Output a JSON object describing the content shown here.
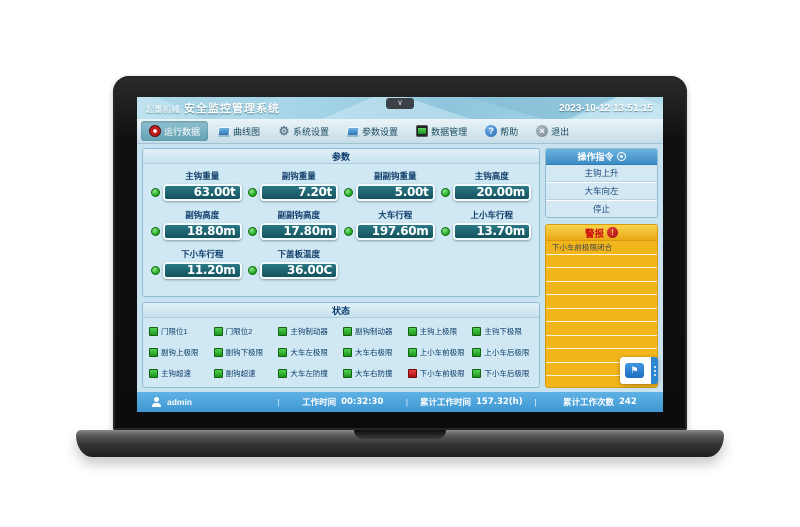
{
  "window": {
    "title_prefix": "起重机械",
    "title": "安全监控管理系统",
    "datetime": "2023-10-12 13:51:15",
    "collapse_glyph": "∨"
  },
  "menu": {
    "items": [
      {
        "label": "运行数据",
        "icon": "record",
        "active": true
      },
      {
        "label": "曲线图",
        "icon": "chart",
        "active": false
      },
      {
        "label": "系统设置",
        "icon": "gear",
        "active": false
      },
      {
        "label": "参数设置",
        "icon": "params",
        "active": false
      },
      {
        "label": "数据管理",
        "icon": "data",
        "active": false
      },
      {
        "label": "帮助",
        "icon": "help",
        "active": false
      },
      {
        "label": "退出",
        "icon": "exit",
        "active": false
      }
    ]
  },
  "params": {
    "title": "参数",
    "items": [
      {
        "label": "主钩重量",
        "value": "63.00t"
      },
      {
        "label": "副钩重量",
        "value": "7.20t"
      },
      {
        "label": "副副钩重量",
        "value": "5.00t"
      },
      {
        "label": "主钩高度",
        "value": "20.00m"
      },
      {
        "label": "副钩高度",
        "value": "18.80m"
      },
      {
        "label": "副副钩高度",
        "value": "17.80m"
      },
      {
        "label": "大车行程",
        "value": "197.60m"
      },
      {
        "label": "上小车行程",
        "value": "13.70m"
      },
      {
        "label": "下小车行程",
        "value": "11.20m"
      },
      {
        "label": "下盖板温度",
        "value": "36.00C"
      }
    ]
  },
  "status": {
    "title": "状态",
    "items": [
      {
        "label": "门限位1",
        "state": "green"
      },
      {
        "label": "门限位2",
        "state": "green"
      },
      {
        "label": "主钩制动器",
        "state": "green"
      },
      {
        "label": "副钩制动器",
        "state": "green"
      },
      {
        "label": "主钩上极限",
        "state": "green"
      },
      {
        "label": "主钩下极限",
        "state": "green"
      },
      {
        "label": "副钩上极限",
        "state": "green"
      },
      {
        "label": "副钩下极限",
        "state": "green"
      },
      {
        "label": "大车左极限",
        "state": "green"
      },
      {
        "label": "大车右极限",
        "state": "green"
      },
      {
        "label": "上小车前极限",
        "state": "green"
      },
      {
        "label": "上小车后极限",
        "state": "green"
      },
      {
        "label": "主钩超速",
        "state": "green"
      },
      {
        "label": "副钩超速",
        "state": "green"
      },
      {
        "label": "大车左防撞",
        "state": "green"
      },
      {
        "label": "大车右防撞",
        "state": "green"
      },
      {
        "label": "下小车前极限",
        "state": "red"
      },
      {
        "label": "下小车后极限",
        "state": "green"
      }
    ]
  },
  "commands": {
    "title": "操作指令",
    "items": [
      "主钩上升",
      "大车向左",
      "停止"
    ]
  },
  "alarm": {
    "title": "警报",
    "icon_glyph": "!",
    "entries": [
      "下小车前极限闭合"
    ],
    "empty_rows": 10
  },
  "statusbar": {
    "user": "admin",
    "work_time_label": "工作时间",
    "work_time": "00:32:30",
    "total_time_label": "累计工作时间",
    "total_time": "157.32(h)",
    "total_count_label": "累计工作次数",
    "total_count": "242",
    "separator": "|"
  },
  "colors": {
    "accent_blue": "#3f97d2",
    "panel_blue": "#cfe8f3",
    "value_box_teal": "#1d6b78",
    "alarm_yellow": "#f2b61c",
    "led_green": "#1da51d",
    "led_red": "#c01818"
  }
}
